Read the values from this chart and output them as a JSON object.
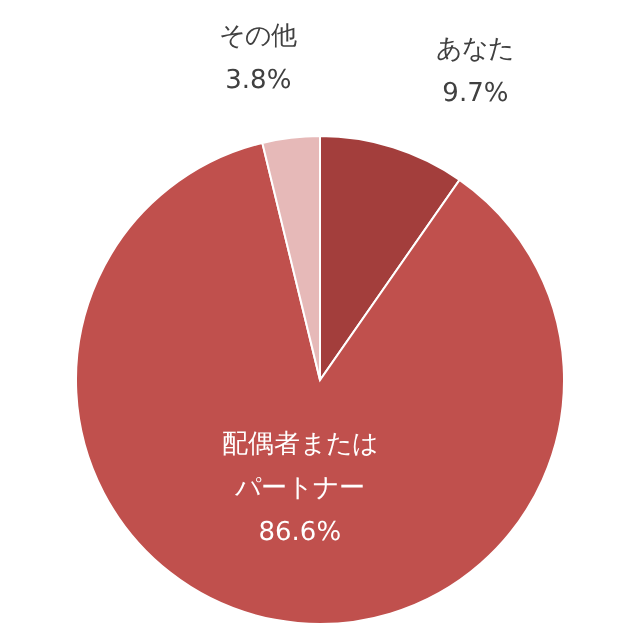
{
  "chart_data": {
    "type": "pie",
    "categories": [
      "あなた",
      "配偶者またはパートナー",
      "その他"
    ],
    "values": [
      9.7,
      86.6,
      3.8
    ],
    "value_labels": [
      "9.7%",
      "86.6%",
      "3.8%"
    ],
    "colors": [
      "#a33e3c",
      "#c0504d",
      "#e6b9b8"
    ]
  }
}
